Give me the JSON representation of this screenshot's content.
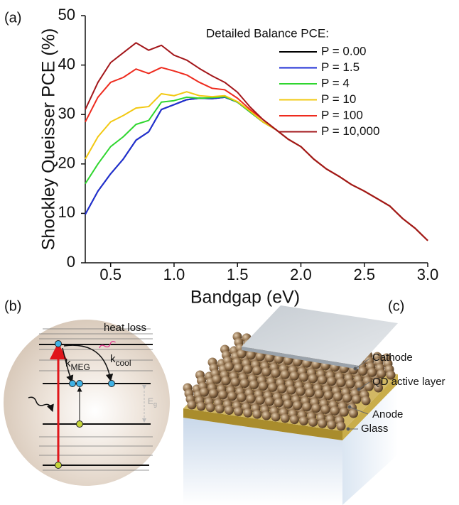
{
  "panel_labels": [
    "(a)",
    "(b)",
    "(c)"
  ],
  "chart_data": {
    "type": "line",
    "x_label": "Bandgap (eV)",
    "y_label": "Shockley Queisser PCE (%)",
    "legend_title": "Detailed Balance PCE:",
    "legend_position": "upper right",
    "xlim": [
      0.3,
      3.0
    ],
    "ylim": [
      0,
      50
    ],
    "xticks": [
      0.5,
      {
        "value": 1,
        "label": "1.0"
      },
      1.5,
      {
        "value": 2,
        "label": "2.0"
      },
      2.5,
      {
        "value": 3,
        "label": "3.0"
      }
    ],
    "yticks": [
      0,
      10,
      20,
      30,
      40,
      50
    ],
    "x": [
      0.3,
      0.4,
      0.5,
      0.6,
      0.7,
      0.8,
      0.9,
      1.0,
      1.1,
      1.2,
      1.3,
      1.4,
      1.5,
      1.6,
      1.7,
      1.8,
      1.9,
      2.0,
      2.1,
      2.2,
      2.3,
      2.4,
      2.5,
      2.6,
      2.7,
      2.8,
      2.9,
      3.0
    ],
    "series": [
      {
        "name": "P = 0.00",
        "color": "#000000",
        "values": [
          9.8,
          14.5,
          18,
          21,
          24.8,
          26.5,
          31,
          32,
          33,
          33.3,
          33.2,
          33.5,
          32.5,
          30.5,
          28.5,
          27,
          25,
          23.5,
          21,
          19,
          17.5,
          15.8,
          14.5,
          13,
          11.5,
          9,
          7,
          4.5
        ]
      },
      {
        "name": "P = 1.5",
        "color": "#1f2fd6",
        "values": [
          9.8,
          14.5,
          18,
          21,
          24.8,
          26.5,
          31,
          32,
          33,
          33.3,
          33.2,
          33.5,
          32.5,
          30.5,
          28.5,
          27,
          25,
          23.5,
          21,
          19,
          17.5,
          15.8,
          14.5,
          13,
          11.5,
          9,
          7,
          4.5
        ]
      },
      {
        "name": "P = 4",
        "color": "#2fd62f",
        "values": [
          16,
          20,
          23.5,
          25.5,
          28,
          28.8,
          32.5,
          32.8,
          33.5,
          33.3,
          33.4,
          33.6,
          32.5,
          30.5,
          28.5,
          27,
          25,
          23.5,
          21,
          19,
          17.5,
          15.8,
          14.5,
          13,
          11.5,
          9,
          7,
          4.5
        ]
      },
      {
        "name": "P = 10",
        "color": "#f2c811",
        "values": [
          21,
          25.5,
          28.5,
          29.8,
          31.3,
          31.6,
          34.2,
          33.8,
          34.6,
          33.8,
          33.6,
          33.8,
          32.6,
          30.7,
          28.5,
          27,
          25,
          23.5,
          21,
          19,
          17.5,
          15.8,
          14.5,
          13,
          11.5,
          9,
          7,
          4.5
        ]
      },
      {
        "name": "P = 100",
        "color": "#ee2b1e",
        "values": [
          28.5,
          33.5,
          36.5,
          37.5,
          39.2,
          38.3,
          39.5,
          38.8,
          38,
          36.5,
          35.3,
          35,
          33.3,
          31,
          29,
          27,
          25,
          23.5,
          21,
          19,
          17.5,
          15.8,
          14.5,
          13,
          11.5,
          9,
          7,
          4.5
        ]
      },
      {
        "name": "P = 10,000",
        "color": "#a3161a",
        "values": [
          31,
          36.5,
          40.5,
          42.5,
          44.5,
          43,
          44,
          42,
          41,
          39.3,
          37.8,
          36.5,
          34.5,
          31.5,
          29,
          27,
          25,
          23.5,
          21,
          19,
          17.5,
          15.8,
          14.5,
          13,
          11.5,
          9,
          7,
          4.5
        ]
      }
    ]
  },
  "diagram_b": {
    "heat_loss": "heat loss",
    "k_meg": {
      "base": "k",
      "sub": "MEG"
    },
    "k_cool": {
      "base": "k",
      "sub": "cool"
    },
    "bandgap": {
      "base": "E",
      "sub": "g"
    }
  },
  "diagram_c": {
    "labels": [
      "Cathode",
      "QD active layer",
      "Anode",
      "Glass"
    ]
  }
}
